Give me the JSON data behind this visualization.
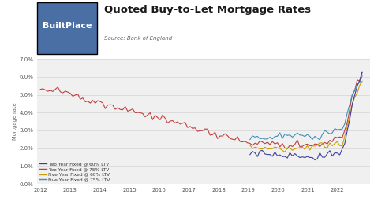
{
  "title": "Quoted Buy-to-Let Mortgage Rates",
  "source": "Source: Bank of England",
  "branding": "BuiltPlace",
  "branding_bg": "#4a6fa5",
  "branding_fg": "#ffffff",
  "ylabel": "Mortgage rate",
  "ylim": [
    0.0,
    0.07
  ],
  "yticks": [
    0.0,
    0.01,
    0.02,
    0.03,
    0.04,
    0.05,
    0.06,
    0.07
  ],
  "ytick_labels": [
    "0.0%",
    "1.0%",
    "2.0%",
    "3.0%",
    "4.0%",
    "5.0%",
    "6.0%",
    "7.0%"
  ],
  "colors": {
    "two_yr_60": "#4040a0",
    "two_yr_75": "#c04040",
    "five_yr_60": "#c8a000",
    "five_yr_75": "#4090b8"
  },
  "legend_labels": [
    "Two Year Fixed @ 60% LTV",
    "Two Year Fixed @ 75% LTV",
    "Five Year Fixed @ 60% LTV",
    "Five Year Fixed @ 75% LTV"
  ],
  "chart_bg": "#f0f0f0",
  "fig_bg": "#ffffff"
}
